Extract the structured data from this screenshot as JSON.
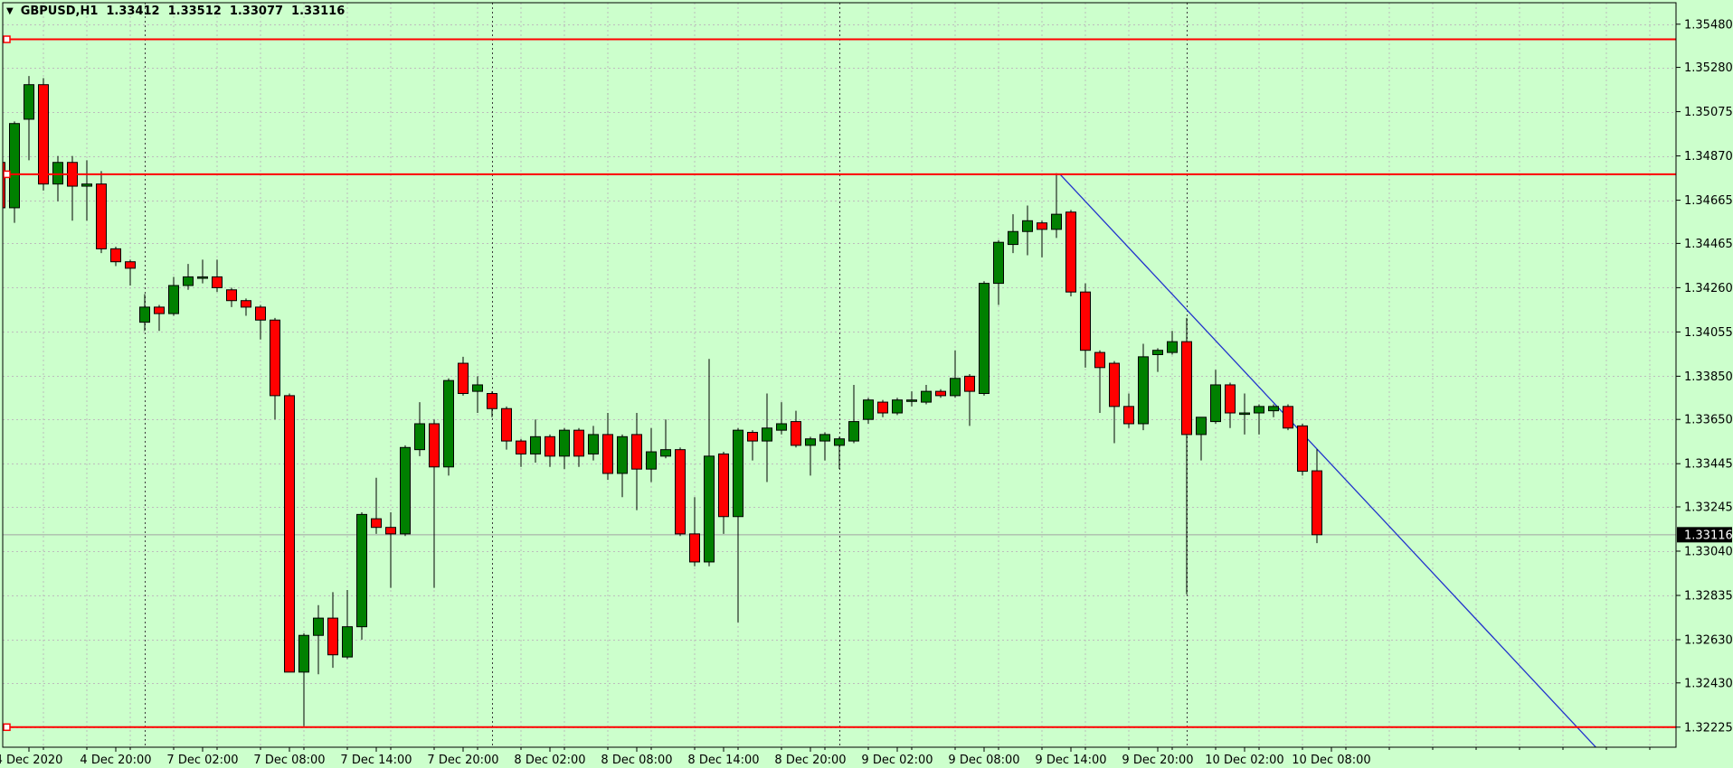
{
  "title": {
    "dropdown_icon": "▼",
    "symbol_period": "GBPUSD,H1",
    "open": "1.33412",
    "high": "1.33512",
    "low": "1.33077",
    "close": "1.33116"
  },
  "colors": {
    "background": "#CCFFCC",
    "grid": "#BDBDBD",
    "separator": "#3a3a3a",
    "bull_fill": "#008000",
    "bear_fill": "#FF0000",
    "candle_outline": "#000000",
    "hline": "#FF0000",
    "trend_line": "#2233CC",
    "bid_line": "#A2A2A2",
    "axis_text": "#000000",
    "border": "#000000",
    "tag_bg": "#000000",
    "tag_text": "#FFFFFF"
  },
  "price_axis": {
    "ticks": [
      "1.35480",
      "1.35280",
      "1.35075",
      "1.34870",
      "1.34665",
      "1.34465",
      "1.34260",
      "1.34055",
      "1.33850",
      "1.33650",
      "1.33445",
      "1.33245",
      "1.33040",
      "1.32835",
      "1.32630",
      "1.32430",
      "1.32225"
    ],
    "current_price": "1.33116"
  },
  "time_axis": {
    "labels": [
      {
        "text": "4 Dec 2020",
        "bar": 2
      },
      {
        "text": "4 Dec 20:00",
        "bar": 8
      },
      {
        "text": "7 Dec 02:00",
        "bar": 14
      },
      {
        "text": "7 Dec 08:00",
        "bar": 20
      },
      {
        "text": "7 Dec 14:00",
        "bar": 26
      },
      {
        "text": "7 Dec 20:00",
        "bar": 32
      },
      {
        "text": "8 Dec 02:00",
        "bar": 38
      },
      {
        "text": "8 Dec 08:00",
        "bar": 44
      },
      {
        "text": "8 Dec 14:00",
        "bar": 50
      },
      {
        "text": "8 Dec 20:00",
        "bar": 56
      },
      {
        "text": "9 Dec 02:00",
        "bar": 62
      },
      {
        "text": "9 Dec 08:00",
        "bar": 68
      },
      {
        "text": "9 Dec 14:00",
        "bar": 74
      },
      {
        "text": "9 Dec 20:00",
        "bar": 80
      },
      {
        "text": "10 Dec 02:00",
        "bar": 86
      },
      {
        "text": "10 Dec 08:00",
        "bar": 92
      }
    ]
  },
  "chart_data": {
    "type": "candlestick",
    "symbol": "GBPUSD",
    "timeframe": "H1",
    "ylim": [
      1.3212,
      1.3559
    ],
    "grid": "on",
    "bid_price": 1.33116,
    "h_lines": [
      1.3541,
      1.34785,
      1.32225
    ],
    "trend_line": {
      "bar1": 73.25,
      "price1": 1.34785,
      "bar2": 110.3,
      "price2": 1.3213
    },
    "day_separator_bars": [
      10,
      34,
      58,
      82
    ],
    "candles": [
      {
        "t": "4 Dec 12:00",
        "o": 1.3484,
        "h": 1.3485,
        "l": 1.3456,
        "c": 1.3463
      },
      {
        "t": "4 Dec 13:00",
        "o": 1.3463,
        "h": 1.3503,
        "l": 1.3456,
        "c": 1.3502
      },
      {
        "t": "4 Dec 14:00",
        "o": 1.3504,
        "h": 1.3524,
        "l": 1.3485,
        "c": 1.352
      },
      {
        "t": "4 Dec 15:00",
        "o": 1.352,
        "h": 1.3523,
        "l": 1.3471,
        "c": 1.3474
      },
      {
        "t": "4 Dec 16:00",
        "o": 1.3474,
        "h": 1.3487,
        "l": 1.3466,
        "c": 1.3484
      },
      {
        "t": "4 Dec 17:00",
        "o": 1.3484,
        "h": 1.3487,
        "l": 1.3457,
        "c": 1.3473
      },
      {
        "t": "4 Dec 18:00",
        "o": 1.3473,
        "h": 1.3485,
        "l": 1.3457,
        "c": 1.3474
      },
      {
        "t": "4 Dec 19:00",
        "o": 1.3474,
        "h": 1.348,
        "l": 1.3442,
        "c": 1.3444
      },
      {
        "t": "4 Dec 20:00",
        "o": 1.3444,
        "h": 1.3445,
        "l": 1.3436,
        "c": 1.3438
      },
      {
        "t": "4 Dec 21:00",
        "o": 1.3438,
        "h": 1.3439,
        "l": 1.3427,
        "c": 1.3435
      },
      {
        "t": "7 Dec 00:00",
        "o": 1.341,
        "h": 1.3423,
        "l": 1.3406,
        "c": 1.3417
      },
      {
        "t": "7 Dec 01:00",
        "o": 1.3417,
        "h": 1.3418,
        "l": 1.3406,
        "c": 1.3414
      },
      {
        "t": "7 Dec 02:00",
        "o": 1.3414,
        "h": 1.3431,
        "l": 1.3413,
        "c": 1.3427
      },
      {
        "t": "7 Dec 03:00",
        "o": 1.3427,
        "h": 1.3437,
        "l": 1.3425,
        "c": 1.3431
      },
      {
        "t": "7 Dec 04:00",
        "o": 1.3431,
        "h": 1.3439,
        "l": 1.3428,
        "c": 1.3431
      },
      {
        "t": "7 Dec 05:00",
        "o": 1.3431,
        "h": 1.3439,
        "l": 1.3424,
        "c": 1.3426
      },
      {
        "t": "7 Dec 06:00",
        "o": 1.3425,
        "h": 1.3426,
        "l": 1.3417,
        "c": 1.342
      },
      {
        "t": "7 Dec 07:00",
        "o": 1.342,
        "h": 1.3421,
        "l": 1.3413,
        "c": 1.3417
      },
      {
        "t": "7 Dec 08:00",
        "o": 1.3417,
        "h": 1.3418,
        "l": 1.3402,
        "c": 1.3411
      },
      {
        "t": "7 Dec 09:00",
        "o": 1.3411,
        "h": 1.3412,
        "l": 1.3365,
        "c": 1.3376
      },
      {
        "t": "7 Dec 10:00",
        "o": 1.3376,
        "h": 1.3377,
        "l": 1.3248,
        "c": 1.3248
      },
      {
        "t": "7 Dec 11:00",
        "o": 1.3248,
        "h": 1.3266,
        "l": 1.3223,
        "c": 1.3265
      },
      {
        "t": "7 Dec 12:00",
        "o": 1.3265,
        "h": 1.3279,
        "l": 1.3247,
        "c": 1.3273
      },
      {
        "t": "7 Dec 13:00",
        "o": 1.3273,
        "h": 1.3285,
        "l": 1.325,
        "c": 1.3256
      },
      {
        "t": "7 Dec 14:00",
        "o": 1.3255,
        "h": 1.3286,
        "l": 1.3254,
        "c": 1.3269
      },
      {
        "t": "7 Dec 15:00",
        "o": 1.3269,
        "h": 1.3322,
        "l": 1.3263,
        "c": 1.3321
      },
      {
        "t": "7 Dec 16:00",
        "o": 1.3319,
        "h": 1.3338,
        "l": 1.3312,
        "c": 1.3315
      },
      {
        "t": "7 Dec 17:00",
        "o": 1.3315,
        "h": 1.3322,
        "l": 1.3287,
        "c": 1.3312
      },
      {
        "t": "7 Dec 18:00",
        "o": 1.3312,
        "h": 1.3353,
        "l": 1.3311,
        "c": 1.3352
      },
      {
        "t": "7 Dec 19:00",
        "o": 1.3351,
        "h": 1.3373,
        "l": 1.3348,
        "c": 1.3363
      },
      {
        "t": "7 Dec 20:00",
        "o": 1.3363,
        "h": 1.3365,
        "l": 1.3287,
        "c": 1.3343
      },
      {
        "t": "7 Dec 21:00",
        "o": 1.3343,
        "h": 1.3384,
        "l": 1.3339,
        "c": 1.3383
      },
      {
        "t": "7 Dec 22:00",
        "o": 1.3391,
        "h": 1.3394,
        "l": 1.3376,
        "c": 1.3377
      },
      {
        "t": "7 Dec 23:00",
        "o": 1.3378,
        "h": 1.3385,
        "l": 1.3368,
        "c": 1.3381
      },
      {
        "t": "8 Dec 00:00",
        "o": 1.3377,
        "h": 1.3378,
        "l": 1.3366,
        "c": 1.337
      },
      {
        "t": "8 Dec 01:00",
        "o": 1.337,
        "h": 1.3371,
        "l": 1.3351,
        "c": 1.3355
      },
      {
        "t": "8 Dec 02:00",
        "o": 1.3355,
        "h": 1.3356,
        "l": 1.3343,
        "c": 1.3349
      },
      {
        "t": "8 Dec 03:00",
        "o": 1.3349,
        "h": 1.3365,
        "l": 1.3345,
        "c": 1.3357
      },
      {
        "t": "8 Dec 04:00",
        "o": 1.3357,
        "h": 1.3358,
        "l": 1.3343,
        "c": 1.3348
      },
      {
        "t": "8 Dec 05:00",
        "o": 1.3348,
        "h": 1.3361,
        "l": 1.3342,
        "c": 1.336
      },
      {
        "t": "8 Dec 06:00",
        "o": 1.336,
        "h": 1.3361,
        "l": 1.3343,
        "c": 1.3348
      },
      {
        "t": "8 Dec 07:00",
        "o": 1.3349,
        "h": 1.3362,
        "l": 1.3346,
        "c": 1.3358
      },
      {
        "t": "8 Dec 08:00",
        "o": 1.3358,
        "h": 1.3368,
        "l": 1.3337,
        "c": 1.334
      },
      {
        "t": "8 Dec 09:00",
        "o": 1.334,
        "h": 1.3358,
        "l": 1.3329,
        "c": 1.3357
      },
      {
        "t": "8 Dec 10:00",
        "o": 1.3358,
        "h": 1.3368,
        "l": 1.3323,
        "c": 1.3342
      },
      {
        "t": "8 Dec 11:00",
        "o": 1.3342,
        "h": 1.3361,
        "l": 1.3336,
        "c": 1.335
      },
      {
        "t": "8 Dec 12:00",
        "o": 1.3348,
        "h": 1.3365,
        "l": 1.3347,
        "c": 1.3351
      },
      {
        "t": "8 Dec 13:00",
        "o": 1.3351,
        "h": 1.3352,
        "l": 1.3311,
        "c": 1.3312
      },
      {
        "t": "8 Dec 14:00",
        "o": 1.3312,
        "h": 1.3329,
        "l": 1.3297,
        "c": 1.3299
      },
      {
        "t": "8 Dec 15:00",
        "o": 1.3299,
        "h": 1.3393,
        "l": 1.3297,
        "c": 1.3348
      },
      {
        "t": "8 Dec 16:00",
        "o": 1.3349,
        "h": 1.335,
        "l": 1.3312,
        "c": 1.332
      },
      {
        "t": "8 Dec 17:00",
        "o": 1.332,
        "h": 1.3361,
        "l": 1.3271,
        "c": 1.336
      },
      {
        "t": "8 Dec 18:00",
        "o": 1.3359,
        "h": 1.336,
        "l": 1.3346,
        "c": 1.3355
      },
      {
        "t": "8 Dec 19:00",
        "o": 1.3355,
        "h": 1.3377,
        "l": 1.3336,
        "c": 1.3361
      },
      {
        "t": "8 Dec 20:00",
        "o": 1.336,
        "h": 1.3373,
        "l": 1.3358,
        "c": 1.3363
      },
      {
        "t": "8 Dec 21:00",
        "o": 1.3364,
        "h": 1.3369,
        "l": 1.3352,
        "c": 1.3353
      },
      {
        "t": "8 Dec 22:00",
        "o": 1.3353,
        "h": 1.3357,
        "l": 1.3339,
        "c": 1.3356
      },
      {
        "t": "8 Dec 23:00",
        "o": 1.3355,
        "h": 1.3359,
        "l": 1.3346,
        "c": 1.3358
      },
      {
        "t": "9 Dec 00:00",
        "o": 1.3353,
        "h": 1.3357,
        "l": 1.3342,
        "c": 1.3356
      },
      {
        "t": "9 Dec 01:00",
        "o": 1.3355,
        "h": 1.3381,
        "l": 1.3354,
        "c": 1.3364
      },
      {
        "t": "9 Dec 02:00",
        "o": 1.3365,
        "h": 1.3375,
        "l": 1.3363,
        "c": 1.3374
      },
      {
        "t": "9 Dec 03:00",
        "o": 1.3373,
        "h": 1.3374,
        "l": 1.3366,
        "c": 1.3368
      },
      {
        "t": "9 Dec 04:00",
        "o": 1.3368,
        "h": 1.3375,
        "l": 1.3367,
        "c": 1.3374
      },
      {
        "t": "9 Dec 05:00",
        "o": 1.3374,
        "h": 1.3378,
        "l": 1.3371,
        "c": 1.3374
      },
      {
        "t": "9 Dec 06:00",
        "o": 1.3373,
        "h": 1.3381,
        "l": 1.3372,
        "c": 1.3378
      },
      {
        "t": "9 Dec 07:00",
        "o": 1.3378,
        "h": 1.3379,
        "l": 1.3375,
        "c": 1.3376
      },
      {
        "t": "9 Dec 08:00",
        "o": 1.3376,
        "h": 1.3397,
        "l": 1.3375,
        "c": 1.3384
      },
      {
        "t": "9 Dec 09:00",
        "o": 1.3385,
        "h": 1.3386,
        "l": 1.3362,
        "c": 1.3378
      },
      {
        "t": "9 Dec 10:00",
        "o": 1.3377,
        "h": 1.3429,
        "l": 1.3376,
        "c": 1.3428
      },
      {
        "t": "9 Dec 11:00",
        "o": 1.3428,
        "h": 1.3448,
        "l": 1.3418,
        "c": 1.3447
      },
      {
        "t": "9 Dec 12:00",
        "o": 1.3446,
        "h": 1.346,
        "l": 1.3442,
        "c": 1.3452
      },
      {
        "t": "9 Dec 13:00",
        "o": 1.3452,
        "h": 1.3464,
        "l": 1.3441,
        "c": 1.3457
      },
      {
        "t": "9 Dec 14:00",
        "o": 1.3456,
        "h": 1.3457,
        "l": 1.344,
        "c": 1.3453
      },
      {
        "t": "9 Dec 15:00",
        "o": 1.3453,
        "h": 1.3479,
        "l": 1.3449,
        "c": 1.346
      },
      {
        "t": "9 Dec 16:00",
        "o": 1.3461,
        "h": 1.3462,
        "l": 1.3422,
        "c": 1.3424
      },
      {
        "t": "9 Dec 17:00",
        "o": 1.3424,
        "h": 1.3428,
        "l": 1.3389,
        "c": 1.3397
      },
      {
        "t": "9 Dec 18:00",
        "o": 1.3396,
        "h": 1.3397,
        "l": 1.3368,
        "c": 1.3389
      },
      {
        "t": "9 Dec 19:00",
        "o": 1.3391,
        "h": 1.3392,
        "l": 1.3354,
        "c": 1.3371
      },
      {
        "t": "9 Dec 20:00",
        "o": 1.3371,
        "h": 1.3377,
        "l": 1.3361,
        "c": 1.3363
      },
      {
        "t": "9 Dec 21:00",
        "o": 1.3363,
        "h": 1.34,
        "l": 1.336,
        "c": 1.3394
      },
      {
        "t": "9 Dec 22:00",
        "o": 1.3395,
        "h": 1.3398,
        "l": 1.3387,
        "c": 1.3397
      },
      {
        "t": "9 Dec 23:00",
        "o": 1.3396,
        "h": 1.3406,
        "l": 1.3395,
        "c": 1.3401
      },
      {
        "t": "10 Dec 00:00",
        "o": 1.3401,
        "h": 1.3412,
        "l": 1.3284,
        "c": 1.3358
      },
      {
        "t": "10 Dec 01:00",
        "o": 1.3358,
        "h": 1.3366,
        "l": 1.3346,
        "c": 1.3366
      },
      {
        "t": "10 Dec 02:00",
        "o": 1.3364,
        "h": 1.3388,
        "l": 1.3363,
        "c": 1.3381
      },
      {
        "t": "10 Dec 03:00",
        "o": 1.3381,
        "h": 1.3382,
        "l": 1.3361,
        "c": 1.3368
      },
      {
        "t": "10 Dec 04:00",
        "o": 1.3368,
        "h": 1.3377,
        "l": 1.3358,
        "c": 1.3368
      },
      {
        "t": "10 Dec 05:00",
        "o": 1.3368,
        "h": 1.3372,
        "l": 1.3358,
        "c": 1.3371
      },
      {
        "t": "10 Dec 06:00",
        "o": 1.3369,
        "h": 1.3372,
        "l": 1.3366,
        "c": 1.3371
      },
      {
        "t": "10 Dec 07:00",
        "o": 1.3371,
        "h": 1.3372,
        "l": 1.336,
        "c": 1.3361
      },
      {
        "t": "10 Dec 08:00",
        "o": 1.3362,
        "h": 1.3363,
        "l": 1.3339,
        "c": 1.3341
      },
      {
        "t": "10 Dec 09:00",
        "o": 1.33412,
        "h": 1.33512,
        "l": 1.33077,
        "c": 1.33116
      }
    ]
  }
}
